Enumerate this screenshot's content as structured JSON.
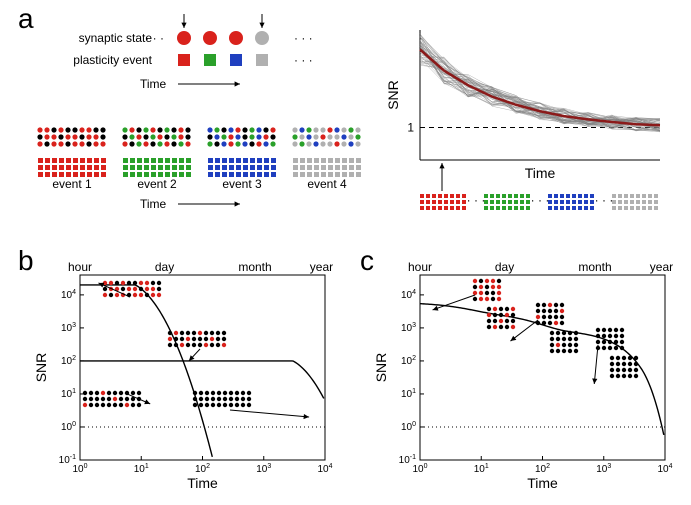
{
  "palette": {
    "red": "#d9221c",
    "green": "#2aa02a",
    "blue": "#1f3fbf",
    "grey": "#b0b0b0",
    "black": "#000000",
    "darkgrey": "#666666",
    "snr_mean": "#8b1a1a",
    "snr_trace": "#808080",
    "axis": "#000000",
    "dashed": "#000000",
    "background": "#ffffff"
  },
  "panelA": {
    "label": "a",
    "rowLabels": {
      "synapticState": "synaptic state",
      "plasticityEvent": "plasticity event"
    },
    "timeLabel": "Time",
    "eventLabels": [
      "event 1",
      "event 2",
      "event 3",
      "event 4"
    ],
    "dotColors": [
      "red",
      "red",
      "red",
      "grey"
    ],
    "squareColors": [
      "red",
      "green",
      "blue",
      "grey"
    ],
    "arrowIndices": [
      0,
      3
    ],
    "stateDots": {
      "rows": 3,
      "cols": 10,
      "event1": [
        [
          "red",
          "red",
          "black",
          "red",
          "black",
          "black",
          "red",
          "red",
          "black",
          "black"
        ],
        [
          "black",
          "red",
          "red",
          "black",
          "red",
          "red",
          "black",
          "red",
          "red",
          "black"
        ],
        [
          "red",
          "black",
          "red",
          "red",
          "black",
          "red",
          "red",
          "black",
          "red",
          "red"
        ]
      ],
      "event2": [
        [
          "green",
          "red",
          "black",
          "green",
          "red",
          "black",
          "green",
          "black",
          "red",
          "black"
        ],
        [
          "black",
          "green",
          "red",
          "black",
          "green",
          "red",
          "black",
          "green",
          "red",
          "black"
        ],
        [
          "red",
          "black",
          "green",
          "red",
          "black",
          "green",
          "red",
          "black",
          "green",
          "red"
        ]
      ],
      "event3": [
        [
          "blue",
          "green",
          "black",
          "blue",
          "red",
          "black",
          "green",
          "blue",
          "black",
          "red"
        ],
        [
          "black",
          "blue",
          "green",
          "red",
          "blue",
          "black",
          "green",
          "blue",
          "red",
          "black"
        ],
        [
          "green",
          "black",
          "blue",
          "red",
          "green",
          "blue",
          "black",
          "red",
          "blue",
          "green"
        ]
      ],
      "event4": [
        [
          "grey",
          "blue",
          "green",
          "grey",
          "grey",
          "red",
          "blue",
          "grey",
          "green",
          "grey"
        ],
        [
          "green",
          "grey",
          "blue",
          "grey",
          "red",
          "grey",
          "grey",
          "blue",
          "grey",
          "green"
        ],
        [
          "grey",
          "green",
          "grey",
          "blue",
          "grey",
          "grey",
          "red",
          "grey",
          "blue",
          "grey"
        ]
      ]
    },
    "eventSquares": {
      "rows": 3,
      "cols": 10
    },
    "snrPlot": {
      "xlabel": "Time",
      "ylabel": "SNR",
      "ylim": [
        0,
        4
      ],
      "xlim": [
        0,
        10
      ],
      "dashedY": 1,
      "x": [
        0,
        1,
        2,
        3,
        4,
        5,
        6,
        7,
        8,
        9,
        10
      ],
      "mean": [
        3.4,
        2.75,
        2.3,
        1.95,
        1.7,
        1.5,
        1.35,
        1.25,
        1.17,
        1.1,
        1.07
      ],
      "ntraces": 55,
      "traceNoise": 0.5,
      "timelineColors": [
        "red",
        "green",
        "blue",
        "grey"
      ],
      "timelineRows": 3,
      "timelineCols": 8
    }
  },
  "panelB": {
    "label": "b",
    "xlabel": "Time",
    "ylabel": "SNR",
    "topLabels": [
      "hour",
      "day",
      "month",
      "year"
    ],
    "topLabelX": [
      1,
      24,
      720,
      8760
    ],
    "xlim": [
      1,
      10000
    ],
    "ylim": [
      0.1,
      40000
    ],
    "baseline": 1,
    "curves": {
      "fast": {
        "start": 20000,
        "knee": 8,
        "fall": 2.5
      },
      "slow": {
        "start": 100,
        "knee": 3000,
        "fall": 2.5
      }
    },
    "insets": {
      "rows": 3,
      "cols": 10,
      "fastEarly": [
        [
          "red",
          "red",
          "black",
          "red",
          "black",
          "black",
          "red",
          "red",
          "black",
          "black"
        ],
        [
          "black",
          "red",
          "red",
          "black",
          "red",
          "red",
          "black",
          "red",
          "red",
          "black"
        ],
        [
          "red",
          "black",
          "red",
          "red",
          "black",
          "red",
          "red",
          "black",
          "red",
          "red"
        ]
      ],
      "fastLate": [
        [
          "black",
          "black",
          "black",
          "red",
          "black",
          "black",
          "black",
          "black",
          "black",
          "black"
        ],
        [
          "black",
          "black",
          "black",
          "black",
          "black",
          "red",
          "black",
          "black",
          "black",
          "black"
        ],
        [
          "red",
          "black",
          "black",
          "black",
          "black",
          "black",
          "black",
          "red",
          "black",
          "black"
        ]
      ],
      "slowEarly": [
        [
          "black",
          "red",
          "black",
          "black",
          "black",
          "red",
          "black",
          "black",
          "black",
          "black"
        ],
        [
          "red",
          "black",
          "black",
          "red",
          "black",
          "black",
          "black",
          "red",
          "black",
          "black"
        ],
        [
          "black",
          "black",
          "red",
          "black",
          "black",
          "black",
          "red",
          "black",
          "black",
          "red"
        ]
      ],
      "slowLate": [
        [
          "black",
          "black",
          "black",
          "black",
          "black",
          "black",
          "black",
          "black",
          "black",
          "black"
        ],
        [
          "black",
          "black",
          "black",
          "black",
          "black",
          "black",
          "black",
          "black",
          "black",
          "black"
        ],
        [
          "black",
          "black",
          "black",
          "black",
          "black",
          "black",
          "black",
          "black",
          "black",
          "black"
        ]
      ]
    }
  },
  "panelC": {
    "label": "c",
    "xlabel": "Time",
    "ylabel": "SNR",
    "topLabels": [
      "hour",
      "day",
      "month",
      "year"
    ],
    "topLabelX": [
      1,
      24,
      720,
      8760
    ],
    "xlim": [
      1,
      10000
    ],
    "ylim": [
      0.1,
      40000
    ],
    "baseline": 1,
    "curve": {
      "start": 6000,
      "decayTerms": [
        [
          0.5,
          5
        ],
        [
          0.35,
          60
        ],
        [
          0.15,
          1500
        ]
      ],
      "fallX": 4000,
      "fallRate": 3
    },
    "insets": {
      "rows": 4,
      "cols": 5,
      "early": {
        "top": [
          [
            "red",
            "black",
            "red",
            "red",
            "black"
          ],
          [
            "black",
            "red",
            "black",
            "red",
            "red"
          ],
          [
            "red",
            "red",
            "black",
            "black",
            "red"
          ],
          [
            "black",
            "red",
            "red",
            "black",
            "red"
          ]
        ],
        "bottom": [
          [
            "black",
            "red",
            "black",
            "black",
            "red"
          ],
          [
            "red",
            "black",
            "black",
            "red",
            "black"
          ],
          [
            "black",
            "black",
            "red",
            "black",
            "black"
          ],
          [
            "black",
            "red",
            "black",
            "black",
            "red"
          ]
        ]
      },
      "mid": {
        "top": [
          [
            "black",
            "black",
            "red",
            "black",
            "black"
          ],
          [
            "black",
            "black",
            "black",
            "black",
            "red"
          ],
          [
            "red",
            "black",
            "black",
            "black",
            "black"
          ],
          [
            "black",
            "black",
            "black",
            "red",
            "black"
          ]
        ],
        "bottom": [
          [
            "black",
            "black",
            "black",
            "black",
            "black"
          ],
          [
            "black",
            "black",
            "black",
            "black",
            "black"
          ],
          [
            "black",
            "red",
            "black",
            "black",
            "black"
          ],
          [
            "black",
            "black",
            "black",
            "black",
            "black"
          ]
        ]
      },
      "late": {
        "top": [
          [
            "black",
            "black",
            "black",
            "black",
            "black"
          ],
          [
            "black",
            "black",
            "black",
            "black",
            "black"
          ],
          [
            "black",
            "black",
            "black",
            "black",
            "black"
          ],
          [
            "black",
            "black",
            "black",
            "black",
            "black"
          ]
        ],
        "bottom": [
          [
            "black",
            "black",
            "black",
            "black",
            "black"
          ],
          [
            "black",
            "black",
            "black",
            "black",
            "black"
          ],
          [
            "black",
            "black",
            "black",
            "black",
            "black"
          ],
          [
            "black",
            "black",
            "black",
            "black",
            "black"
          ]
        ]
      }
    }
  },
  "typography": {
    "panelLabelSize": 28,
    "axisLabelSize": 14,
    "smallLabelSize": 12,
    "tickLabelSize": 10
  }
}
